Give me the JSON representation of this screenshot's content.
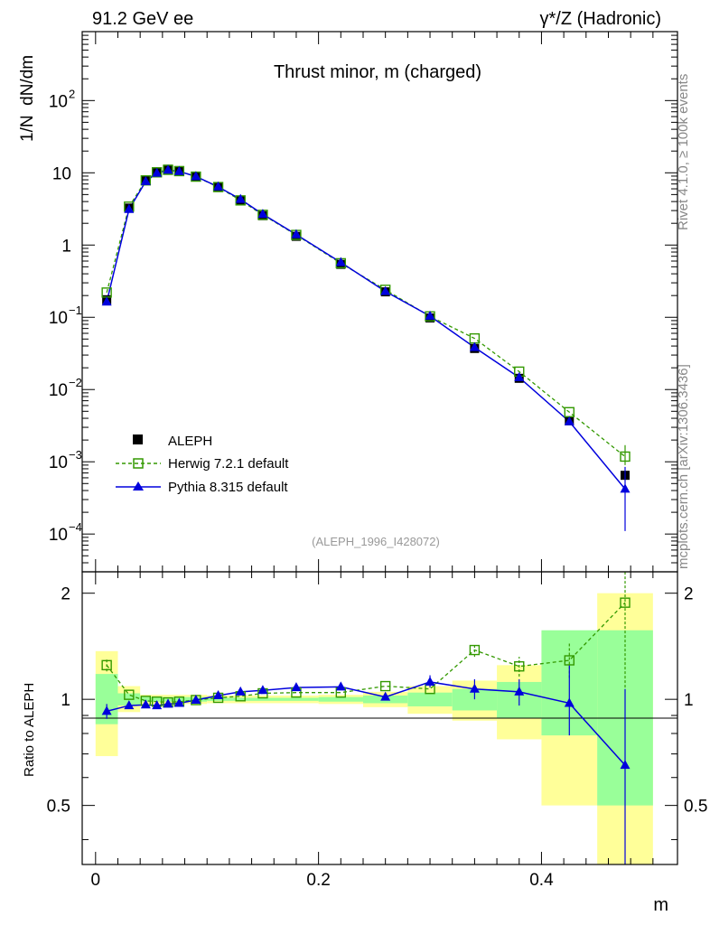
{
  "header": {
    "energy_label": "91.2 GeV ee",
    "process_label": "γ*/Z (Hadronic)",
    "side_rivet": "Rivet 4.1.0, ≥ 100k events",
    "side_mcplots": "mcplots.cern.ch [arXiv:1306.3436]"
  },
  "colors": {
    "data": "#000000",
    "herwig": "#339900",
    "pythia": "#0000dd",
    "band_outer": "#ffff99",
    "band_inner": "#99ff99"
  },
  "chart_data": [
    {
      "type": "line",
      "panel": "main",
      "title": "Thrust minor, m (charged)",
      "analysis_tag": "(ALEPH_1996_I428072)",
      "ylabel": "1/N  dN/dm",
      "yscale": "log",
      "xlim": [
        -0.012,
        0.522
      ],
      "ylim": [
        3e-05,
        900
      ],
      "y_ticks": [
        {
          "value": 100,
          "base": "10",
          "exp": "2"
        },
        {
          "value": 10,
          "base": "10",
          "exp": ""
        },
        {
          "value": 1,
          "base": "1",
          "exp": ""
        },
        {
          "value": 0.1,
          "base": "10",
          "exp": "−1"
        },
        {
          "value": 0.01,
          "base": "10",
          "exp": "−2"
        },
        {
          "value": 0.001,
          "base": "10",
          "exp": "−3"
        },
        {
          "value": 0.0001,
          "base": "10",
          "exp": "−4"
        }
      ],
      "legend": {
        "position": "bottom-left",
        "entries": [
          "ALEPH",
          "Herwig 7.2.1 default",
          "Pythia 8.315 default"
        ]
      },
      "x": [
        0.01,
        0.03,
        0.045,
        0.055,
        0.065,
        0.075,
        0.09,
        0.11,
        0.13,
        0.15,
        0.18,
        0.22,
        0.26,
        0.3,
        0.34,
        0.38,
        0.425,
        0.475
      ],
      "series": [
        {
          "name": "ALEPH",
          "values": [
            0.175,
            3.25,
            7.9,
            10.3,
            11.2,
            10.7,
            8.9,
            6.3,
            4.1,
            2.55,
            1.32,
            0.54,
            0.225,
            0.098,
            0.037,
            0.0143,
            0.0037,
            0.00065
          ]
        },
        {
          "name": "Herwig 7.2.1 default",
          "values": [
            0.22,
            3.4,
            7.85,
            10.15,
            11.0,
            10.55,
            8.85,
            6.35,
            4.15,
            2.62,
            1.38,
            0.56,
            0.24,
            0.103,
            0.051,
            0.0177,
            0.00486,
            0.00118
          ]
        },
        {
          "name": "Pythia 8.315 default",
          "values": [
            0.163,
            3.12,
            7.6,
            9.9,
            10.9,
            10.45,
            8.9,
            6.4,
            4.3,
            2.67,
            1.4,
            0.575,
            0.228,
            0.104,
            0.0383,
            0.0147,
            0.0036,
            0.00042
          ]
        }
      ]
    },
    {
      "type": "line",
      "panel": "ratio",
      "ylabel": "Ratio to ALEPH",
      "xlabel": "m",
      "xlim": [
        -0.012,
        0.522
      ],
      "ylim": [
        0.34,
        2.3
      ],
      "x_ticks": [
        "0",
        "0.2",
        "0.4"
      ],
      "y_ticks": [
        "0.5",
        "1",
        "2"
      ],
      "x": [
        0.01,
        0.03,
        0.045,
        0.055,
        0.065,
        0.075,
        0.09,
        0.11,
        0.13,
        0.15,
        0.18,
        0.22,
        0.26,
        0.3,
        0.34,
        0.38,
        0.425,
        0.475
      ],
      "series": [
        {
          "name": "Herwig 7.2.1 default",
          "values": [
            1.25,
            1.03,
            0.99,
            0.985,
            0.98,
            0.985,
            0.995,
            1.01,
            1.02,
            1.04,
            1.045,
            1.045,
            1.09,
            1.07,
            1.38,
            1.24,
            1.29,
            1.88
          ]
        },
        {
          "name": "Pythia 8.315 default",
          "values": [
            0.925,
            0.96,
            0.965,
            0.96,
            0.97,
            0.975,
            0.995,
            1.025,
            1.05,
            1.06,
            1.08,
            1.085,
            1.015,
            1.12,
            1.07,
            1.05,
            0.975,
            0.65
          ]
        }
      ],
      "data_uncertainty_bands": [
        {
          "x_range": [
            0.0,
            0.02
          ],
          "outer": [
            0.69,
            1.37
          ],
          "inner": [
            0.85,
            1.18
          ]
        },
        {
          "x_range": [
            0.02,
            0.04
          ],
          "outer": [
            0.92,
            1.09
          ],
          "inner": [
            0.96,
            1.04
          ]
        },
        {
          "x_range": [
            0.04,
            0.1
          ],
          "outer": [
            0.97,
            1.03
          ],
          "inner": [
            0.985,
            1.015
          ]
        },
        {
          "x_range": [
            0.1,
            0.2
          ],
          "outer": [
            0.975,
            1.025
          ],
          "inner": [
            0.99,
            1.01
          ]
        },
        {
          "x_range": [
            0.2,
            0.24
          ],
          "outer": [
            0.97,
            1.03
          ],
          "inner": [
            0.985,
            1.015
          ]
        },
        {
          "x_range": [
            0.24,
            0.28
          ],
          "outer": [
            0.95,
            1.05
          ],
          "inner": [
            0.975,
            1.025
          ]
        },
        {
          "x_range": [
            0.28,
            0.32
          ],
          "outer": [
            0.91,
            1.09
          ],
          "inner": [
            0.955,
            1.045
          ]
        },
        {
          "x_range": [
            0.32,
            0.36
          ],
          "outer": [
            0.87,
            1.13
          ],
          "inner": [
            0.93,
            1.07
          ]
        },
        {
          "x_range": [
            0.36,
            0.4
          ],
          "outer": [
            0.77,
            1.25
          ],
          "inner": [
            0.885,
            1.12
          ]
        },
        {
          "x_range": [
            0.4,
            0.45
          ],
          "outer": [
            0.5,
            1.56
          ],
          "inner": [
            0.79,
            1.57
          ]
        },
        {
          "x_range": [
            0.45,
            0.5
          ],
          "outer": [
            0.34,
            2.0
          ],
          "inner": [
            0.5,
            1.57
          ]
        }
      ]
    }
  ]
}
